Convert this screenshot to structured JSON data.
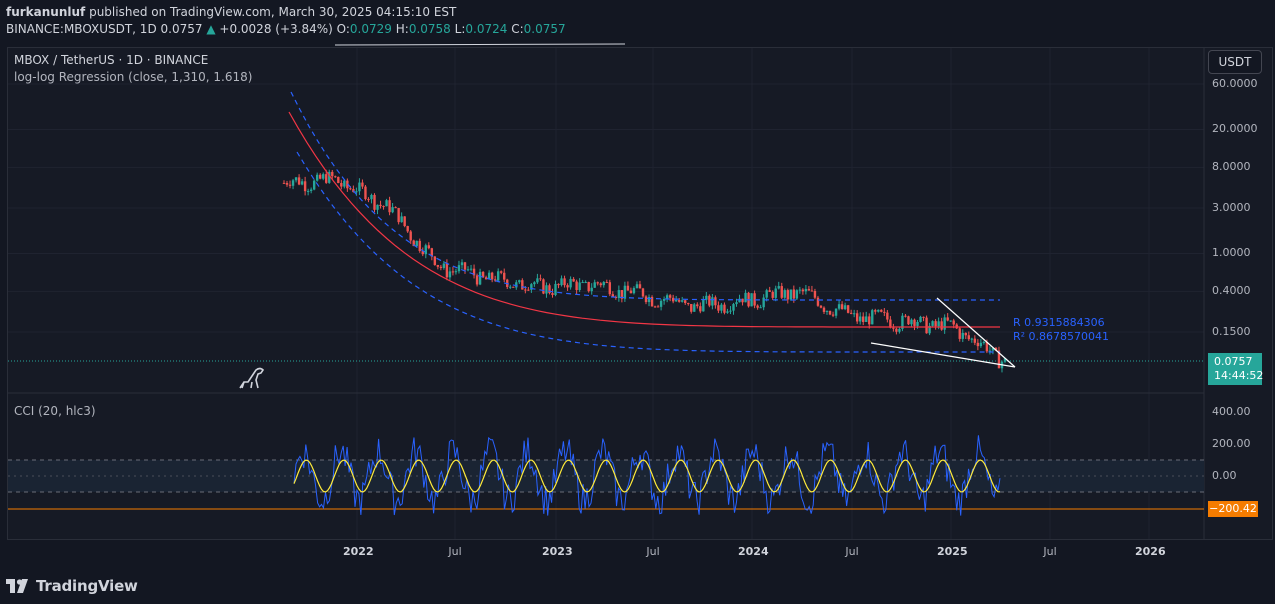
{
  "header": {
    "publisher": "furkanunluf",
    "published_text": " published on TradingView.com, March 30, 2025 04:15:10 EST",
    "symbol_line": "BINANCE:MBOXUSDT, 1D",
    "last": "0.0757",
    "change": "+0.0028 (+3.84%)",
    "o_label": "O:",
    "o": "0.0729",
    "h_label": "H:",
    "h": "0.0758",
    "l_label": "L:",
    "l": "0.0724",
    "c_label": "C:",
    "c": "0.0757"
  },
  "legend": {
    "title": "MBOX / TetherUS · 1D · BINANCE",
    "indicator": "log-log Regression (close, 1,310, 1.618)",
    "cci": "CCI (20, hlc3)"
  },
  "currency_button": "USDT",
  "price_axis": [
    "60.0000",
    "20.0000",
    "8.0000",
    "3.0000",
    "1.0000",
    "0.4000",
    "0.1500"
  ],
  "cci_axis": [
    "400.00",
    "200.00",
    "0.00"
  ],
  "current_price": {
    "price": "0.0757",
    "countdown": "14:44:52"
  },
  "cci_value": "−200.42",
  "regression_stats": {
    "r": "R 0.9315884306",
    "r2": "R² 0.8678570041"
  },
  "time_axis": [
    "2022",
    "Jul",
    "2023",
    "Jul",
    "2024",
    "Jul",
    "2025",
    "Jul",
    "2026"
  ],
  "footer": {
    "brand": "TradingView"
  },
  "colors": {
    "bg": "#131722",
    "up": "#26a69a",
    "down": "#ef5350",
    "regression": "#f23645",
    "channel": "#2962ff",
    "cci": "#2962ff",
    "cci_ma": "#ffeb3b",
    "cci_band": "#1e2a3a",
    "cci_marker": "#f57c00"
  },
  "chart_data": {
    "type": "line",
    "title": "MBOX / TetherUS · 1D · BINANCE",
    "scale": "log",
    "ylim": [
      0.05,
      60
    ],
    "x": [
      "2021-11",
      "2022-01",
      "2022-04",
      "2022-07",
      "2022-10",
      "2023-01",
      "2023-04",
      "2023-07",
      "2023-10",
      "2024-01",
      "2024-04",
      "2024-07",
      "2024-10",
      "2025-01",
      "2025-03"
    ],
    "series": [
      {
        "values": [
          5.5,
          6.0,
          3.2,
          0.75,
          0.55,
          0.45,
          0.48,
          0.37,
          0.28,
          0.33,
          0.4,
          0.22,
          0.2,
          0.17,
          0.0757
        ]
      }
    ],
    "cci": {
      "name": "CCI (20, hlc3)",
      "last": -200.42,
      "ylim": [
        -250,
        420
      ],
      "band": [
        -100,
        100
      ]
    }
  }
}
